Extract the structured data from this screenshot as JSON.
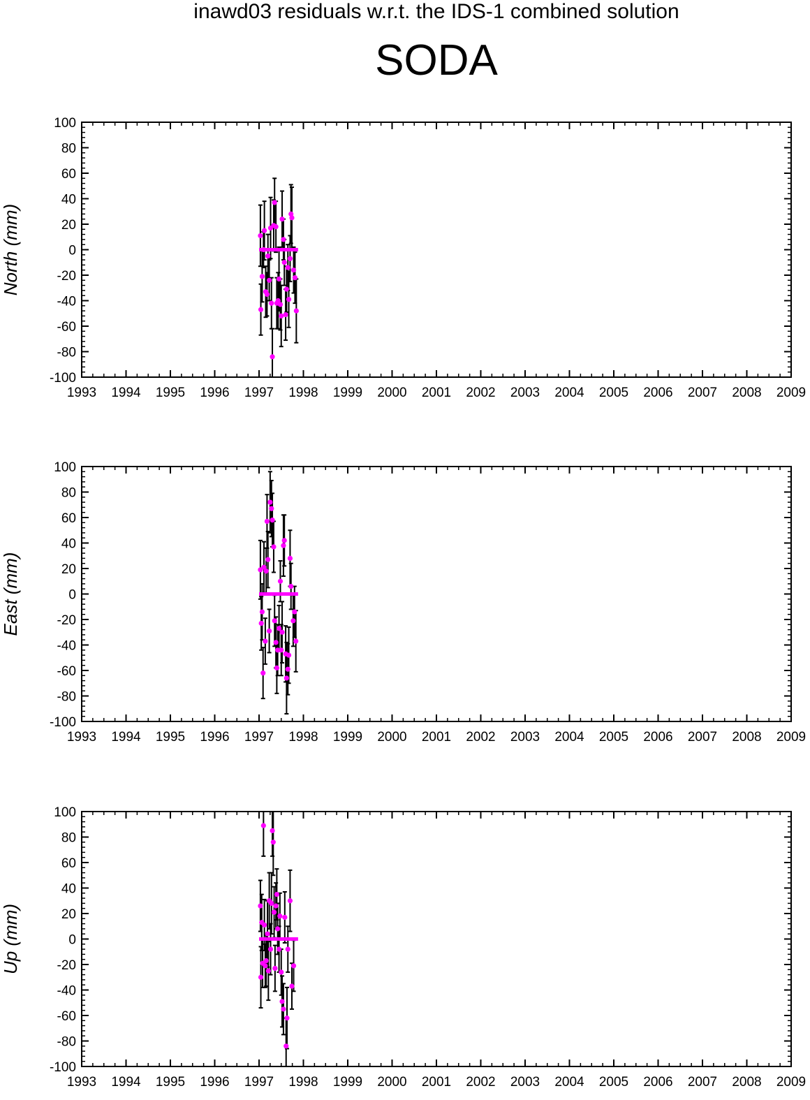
{
  "supertitle": "inawd03 residuals w.r.t. the IDS-1 combined solution",
  "station": "SODA",
  "colors": {
    "point": "#ff00ff",
    "errorbar": "#000000",
    "axis": "#000000"
  },
  "chart_data": [
    {
      "type": "scatter",
      "ylabel": "North (mm)",
      "xlim": [
        1993,
        2009
      ],
      "ylim": [
        -100,
        100
      ],
      "xticks": [
        "1993",
        "1994",
        "1995",
        "1996",
        "1997",
        "1998",
        "1999",
        "2000",
        "2001",
        "2002",
        "2003",
        "2004",
        "2005",
        "2006",
        "2007",
        "2008",
        "2009"
      ],
      "yticks": [
        "100",
        "80",
        "60",
        "40",
        "20",
        "0",
        "-20",
        "-40",
        "-60",
        "-80",
        "-100"
      ],
      "grid": false,
      "zero_line": {
        "x": [
          1997.0,
          1997.88
        ],
        "y": 0
      },
      "points": [
        {
          "x": 1997.03,
          "y": 11,
          "err": 24
        },
        {
          "x": 1997.04,
          "y": -47,
          "err": 20
        },
        {
          "x": 1997.07,
          "y": -21,
          "err": 20
        },
        {
          "x": 1997.1,
          "y": 0,
          "err": 14
        },
        {
          "x": 1997.12,
          "y": 15,
          "err": 23
        },
        {
          "x": 1997.15,
          "y": -33,
          "err": 20
        },
        {
          "x": 1997.18,
          "y": -35,
          "err": 17
        },
        {
          "x": 1997.2,
          "y": -5,
          "err": 17
        },
        {
          "x": 1997.23,
          "y": -24,
          "err": 16
        },
        {
          "x": 1997.26,
          "y": 17,
          "err": 24
        },
        {
          "x": 1997.28,
          "y": -42,
          "err": 20
        },
        {
          "x": 1997.3,
          "y": -84,
          "err": 22
        },
        {
          "x": 1997.33,
          "y": 19,
          "err": 20
        },
        {
          "x": 1997.35,
          "y": 37,
          "err": 19
        },
        {
          "x": 1997.38,
          "y": 18,
          "err": 20
        },
        {
          "x": 1997.4,
          "y": -42,
          "err": 20
        },
        {
          "x": 1997.43,
          "y": -40,
          "err": 22
        },
        {
          "x": 1997.45,
          "y": -23,
          "err": 25
        },
        {
          "x": 1997.48,
          "y": -43,
          "err": 20
        },
        {
          "x": 1997.5,
          "y": -52,
          "err": 24
        },
        {
          "x": 1997.52,
          "y": 24,
          "err": 22
        },
        {
          "x": 1997.55,
          "y": 8,
          "err": 16
        },
        {
          "x": 1997.57,
          "y": -10,
          "err": 18
        },
        {
          "x": 1997.6,
          "y": -51,
          "err": 20
        },
        {
          "x": 1997.62,
          "y": -31,
          "err": 18
        },
        {
          "x": 1997.65,
          "y": -14,
          "err": 18
        },
        {
          "x": 1997.67,
          "y": -39,
          "err": 22
        },
        {
          "x": 1997.7,
          "y": -7,
          "err": 18
        },
        {
          "x": 1997.72,
          "y": 28,
          "err": 23
        },
        {
          "x": 1997.74,
          "y": 25,
          "err": 24
        },
        {
          "x": 1997.78,
          "y": -16,
          "err": 18
        },
        {
          "x": 1997.81,
          "y": -22,
          "err": 20
        },
        {
          "x": 1997.84,
          "y": -48,
          "err": 25
        }
      ]
    },
    {
      "type": "scatter",
      "ylabel": "East (mm)",
      "xlim": [
        1993,
        2009
      ],
      "ylim": [
        -100,
        100
      ],
      "xticks": [
        "1993",
        "1994",
        "1995",
        "1996",
        "1997",
        "1998",
        "1999",
        "2000",
        "2001",
        "2002",
        "2003",
        "2004",
        "2005",
        "2006",
        "2007",
        "2008",
        "2009"
      ],
      "yticks": [
        "100",
        "80",
        "60",
        "40",
        "20",
        "0",
        "-20",
        "-40",
        "-60",
        "-80",
        "-100"
      ],
      "grid": false,
      "zero_line": {
        "x": [
          1997.0,
          1997.88
        ],
        "y": 0
      },
      "points": [
        {
          "x": 1997.03,
          "y": 19,
          "err": 23
        },
        {
          "x": 1997.05,
          "y": -23,
          "err": 21
        },
        {
          "x": 1997.07,
          "y": -14,
          "err": 22
        },
        {
          "x": 1997.09,
          "y": -62,
          "err": 20
        },
        {
          "x": 1997.11,
          "y": 21,
          "err": 20
        },
        {
          "x": 1997.14,
          "y": -37,
          "err": 18
        },
        {
          "x": 1997.16,
          "y": 18,
          "err": 18
        },
        {
          "x": 1997.18,
          "y": 57,
          "err": 21
        },
        {
          "x": 1997.2,
          "y": 27,
          "err": 22
        },
        {
          "x": 1997.23,
          "y": -29,
          "err": 17
        },
        {
          "x": 1997.25,
          "y": 72,
          "err": 24
        },
        {
          "x": 1997.28,
          "y": 67,
          "err": 22
        },
        {
          "x": 1997.3,
          "y": 58,
          "err": 21
        },
        {
          "x": 1997.33,
          "y": 37,
          "err": 20
        },
        {
          "x": 1997.35,
          "y": -21,
          "err": 20
        },
        {
          "x": 1997.38,
          "y": -38,
          "err": 20
        },
        {
          "x": 1997.4,
          "y": -58,
          "err": 20
        },
        {
          "x": 1997.42,
          "y": -44,
          "err": 20
        },
        {
          "x": 1997.45,
          "y": -27,
          "err": 18
        },
        {
          "x": 1997.48,
          "y": 10,
          "err": 16
        },
        {
          "x": 1997.5,
          "y": -44,
          "err": 20
        },
        {
          "x": 1997.52,
          "y": -30,
          "err": 24
        },
        {
          "x": 1997.55,
          "y": 38,
          "err": 24
        },
        {
          "x": 1997.57,
          "y": 42,
          "err": 20
        },
        {
          "x": 1997.6,
          "y": -47,
          "err": 22
        },
        {
          "x": 1997.62,
          "y": -66,
          "err": 28
        },
        {
          "x": 1997.65,
          "y": -59,
          "err": 20
        },
        {
          "x": 1997.67,
          "y": -48,
          "err": 22
        },
        {
          "x": 1997.7,
          "y": 28,
          "err": 22
        },
        {
          "x": 1997.72,
          "y": 6,
          "err": 18
        },
        {
          "x": 1997.77,
          "y": -21,
          "err": 20
        },
        {
          "x": 1997.8,
          "y": -14,
          "err": 20
        },
        {
          "x": 1997.83,
          "y": -37,
          "err": 24
        }
      ]
    },
    {
      "type": "scatter",
      "ylabel": "Up (mm)",
      "xlim": [
        1993,
        2009
      ],
      "ylim": [
        -100,
        100
      ],
      "xticks": [
        "1993",
        "1994",
        "1995",
        "1996",
        "1997",
        "1998",
        "1999",
        "2000",
        "2001",
        "2002",
        "2003",
        "2004",
        "2005",
        "2006",
        "2007",
        "2008",
        "2009"
      ],
      "yticks": [
        "100",
        "80",
        "60",
        "40",
        "20",
        "0",
        "-20",
        "-40",
        "-60",
        "-80",
        "-100"
      ],
      "grid": false,
      "zero_line": {
        "x": [
          1997.0,
          1997.88
        ],
        "y": 0
      },
      "points": [
        {
          "x": 1997.03,
          "y": 26,
          "err": 20
        },
        {
          "x": 1997.04,
          "y": -30,
          "err": 24
        },
        {
          "x": 1997.06,
          "y": 13,
          "err": 22
        },
        {
          "x": 1997.08,
          "y": -19,
          "err": 19
        },
        {
          "x": 1997.1,
          "y": 89,
          "err": 24
        },
        {
          "x": 1997.12,
          "y": 11,
          "err": 20
        },
        {
          "x": 1997.14,
          "y": -21,
          "err": 17
        },
        {
          "x": 1997.16,
          "y": -17,
          "err": 20
        },
        {
          "x": 1997.19,
          "y": 4,
          "err": 26
        },
        {
          "x": 1997.21,
          "y": -25,
          "err": 23
        },
        {
          "x": 1997.23,
          "y": 30,
          "err": 22
        },
        {
          "x": 1997.26,
          "y": -8,
          "err": 20
        },
        {
          "x": 1997.28,
          "y": 28,
          "err": 24
        },
        {
          "x": 1997.3,
          "y": 85,
          "err": 20
        },
        {
          "x": 1997.32,
          "y": 76,
          "err": 26
        },
        {
          "x": 1997.34,
          "y": 21,
          "err": 20
        },
        {
          "x": 1997.36,
          "y": -23,
          "err": 18
        },
        {
          "x": 1997.38,
          "y": 26,
          "err": 18
        },
        {
          "x": 1997.4,
          "y": 35,
          "err": 20
        },
        {
          "x": 1997.42,
          "y": 8,
          "err": 20
        },
        {
          "x": 1997.45,
          "y": -8,
          "err": 18
        },
        {
          "x": 1997.47,
          "y": 18,
          "err": 18
        },
        {
          "x": 1997.5,
          "y": -26,
          "err": 18
        },
        {
          "x": 1997.52,
          "y": -49,
          "err": 20
        },
        {
          "x": 1997.55,
          "y": -55,
          "err": 20
        },
        {
          "x": 1997.58,
          "y": 17,
          "err": 20
        },
        {
          "x": 1997.61,
          "y": -84,
          "err": 22
        },
        {
          "x": 1997.63,
          "y": -62,
          "err": 24
        },
        {
          "x": 1997.65,
          "y": -8,
          "err": 18
        },
        {
          "x": 1997.7,
          "y": 30,
          "err": 24
        },
        {
          "x": 1997.74,
          "y": -37,
          "err": 18
        },
        {
          "x": 1997.78,
          "y": -21,
          "err": 20
        }
      ]
    }
  ]
}
